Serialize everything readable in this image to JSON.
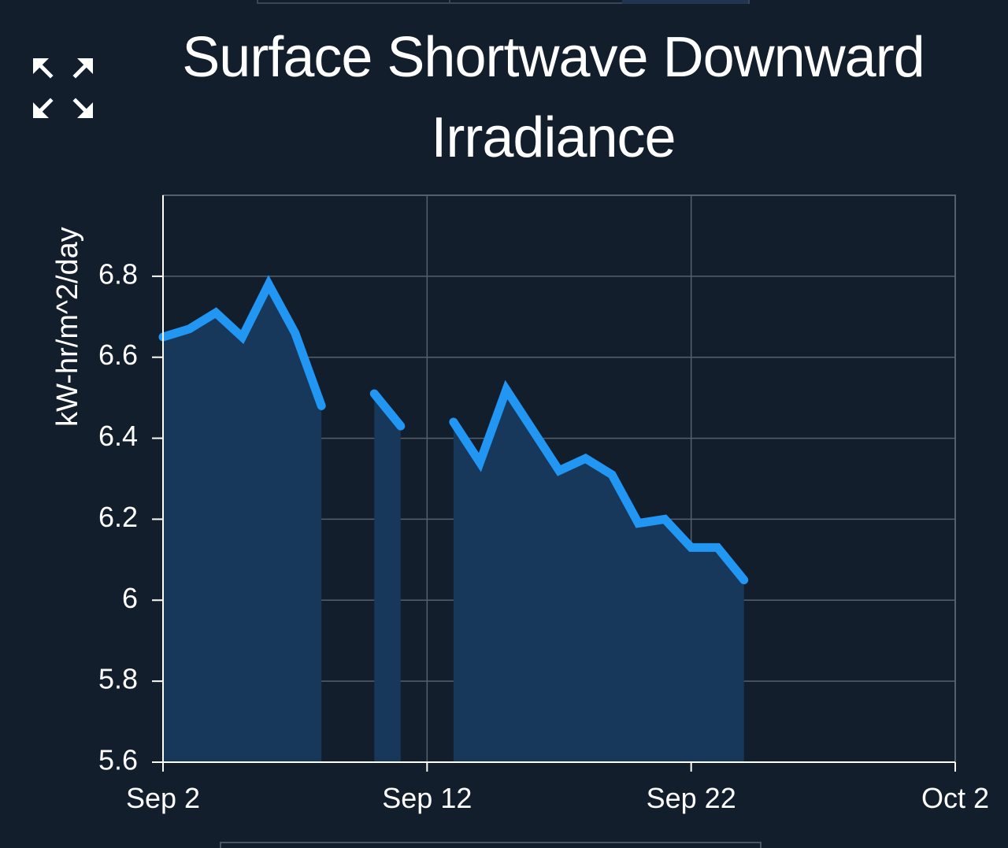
{
  "title": "Surface Shortwave Downward Irradiance",
  "expand_icon": "expand-arrows-icon",
  "colors": {
    "background": "#121e2c",
    "line": "#2196f3",
    "fill": "#17385a",
    "grid": "#55606d",
    "text": "#ffffff"
  },
  "chart_data": {
    "type": "area",
    "title": "Surface Shortwave Downward Irradiance",
    "xlabel": "",
    "ylabel": "kW-hr/m^2/day",
    "grid": true,
    "legend": "none",
    "ylim": [
      5.6,
      7.0
    ],
    "xlim": [
      "2024-09-02",
      "2024-10-02"
    ],
    "x_ticks": [
      "Sep 2",
      "Sep 12",
      "Sep 22",
      "Oct 2"
    ],
    "y_ticks": [
      "5.6",
      "5.8",
      "6",
      "6.2",
      "6.4",
      "6.6",
      "6.8"
    ],
    "series": [
      {
        "name": "",
        "x": [
          "2024-09-02",
          "2024-09-03",
          "2024-09-04",
          "2024-09-05",
          "2024-09-06",
          "2024-09-07",
          "2024-09-08",
          "2024-09-09",
          "2024-09-10",
          "2024-09-11",
          "2024-09-12",
          "2024-09-13",
          "2024-09-14",
          "2024-09-15",
          "2024-09-16",
          "2024-09-17",
          "2024-09-18",
          "2024-09-19",
          "2024-09-20",
          "2024-09-21",
          "2024-09-22",
          "2024-09-23",
          "2024-09-24"
        ],
        "y": [
          6.65,
          6.67,
          6.71,
          6.65,
          6.78,
          6.66,
          6.48,
          null,
          6.51,
          6.43,
          null,
          6.44,
          6.34,
          6.52,
          6.42,
          6.32,
          6.35,
          6.31,
          6.19,
          6.2,
          6.13,
          6.13,
          6.05
        ]
      }
    ]
  }
}
